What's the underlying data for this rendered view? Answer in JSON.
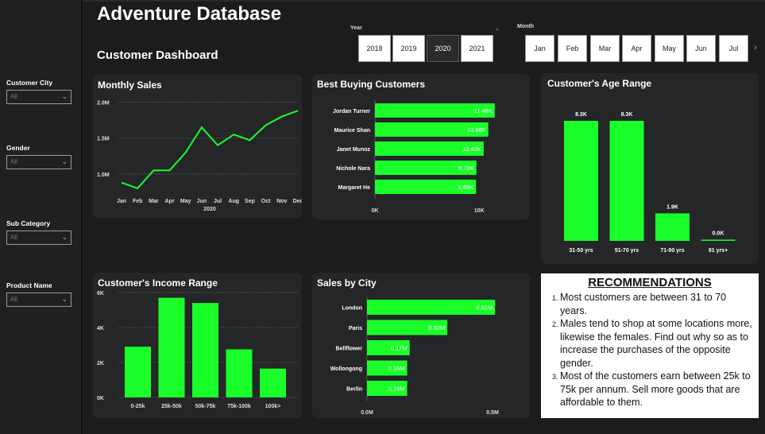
{
  "app": {
    "title": "Adventure Database",
    "subtitle": "Customer Dashboard"
  },
  "filters": [
    {
      "label": "Customer City",
      "value": "All"
    },
    {
      "label": "Gender",
      "value": "All"
    },
    {
      "label": "Sub Category",
      "value": "All"
    },
    {
      "label": "Product Name",
      "value": "All"
    }
  ],
  "year_slicer": {
    "label": "Year",
    "options": [
      "2018",
      "2019",
      "2020",
      "2021"
    ],
    "selected": "2020"
  },
  "month_slicer": {
    "label": "Month",
    "options": [
      "Jan",
      "Feb",
      "Mar",
      "Apr",
      "May",
      "Jun",
      "Jul"
    ]
  },
  "colors": {
    "accent": "#1aff2a",
    "card_bg": "#252628",
    "page_bg": "#1b1c1e"
  },
  "chart_data": [
    {
      "id": "monthly-sales",
      "type": "line",
      "title": "Monthly Sales",
      "categories": [
        "Jan",
        "Feb",
        "Mar",
        "Apr",
        "May",
        "Jun",
        "Jul",
        "Aug",
        "Sep",
        "Oct",
        "Nov",
        "Dec"
      ],
      "values": [
        0.88,
        0.8,
        1.05,
        1.05,
        1.3,
        1.65,
        1.4,
        1.55,
        1.47,
        1.68,
        1.8,
        1.88
      ],
      "xlabel": "2020",
      "ylim": [
        0.7,
        2.05
      ],
      "yticks": [
        1.0,
        1.5,
        2.0
      ],
      "ytick_labels": [
        "1.0M",
        "1.5M",
        "2.0M"
      ],
      "grid": true
    },
    {
      "id": "best-buying-customers",
      "type": "bar",
      "orientation": "horizontal",
      "title": "Best Buying Customers",
      "categories": [
        "Jordan Turner",
        "Maurice Shan",
        "Janet Munoz",
        "Nichole Nara",
        "Margaret He"
      ],
      "values": [
        11.48,
        10.86,
        10.42,
        9.72,
        9.69
      ],
      "data_labels": [
        "11.48K",
        "10.86K",
        "10.42K",
        "9.72K",
        "9.69K"
      ],
      "xlim": [
        0,
        15
      ],
      "xticks": [
        0,
        10
      ],
      "xtick_labels": [
        "0K",
        "10K"
      ]
    },
    {
      "id": "age-range",
      "type": "bar",
      "title": "Customer's Age Range",
      "categories": [
        "31-50 yrs",
        "51-70 yrs",
        "71-90 yrs",
        "91 yrs+"
      ],
      "values": [
        8.3,
        8.3,
        1.9,
        0.0
      ],
      "data_labels": [
        "8.3K",
        "8.3K",
        "1.9K",
        "0.0K"
      ],
      "ylim": [
        0,
        8.3
      ]
    },
    {
      "id": "income-range",
      "type": "bar",
      "title": "Customer's Income Range",
      "categories": [
        "0-25k",
        "25k-50k",
        "50k-75k",
        "75k-100k",
        "100k>"
      ],
      "values": [
        2.9,
        5.7,
        5.4,
        2.75,
        1.65
      ],
      "ylim": [
        0,
        6
      ],
      "yticks": [
        0,
        2,
        4,
        6
      ],
      "ytick_labels": [
        "0K",
        "2K",
        "4K",
        "6K"
      ],
      "grid": true
    },
    {
      "id": "sales-by-city",
      "type": "bar",
      "orientation": "horizontal",
      "title": "Sales by City",
      "categories": [
        "London",
        "Paris",
        "Bellflower",
        "Wollongong",
        "Berlin"
      ],
      "values": [
        0.51,
        0.32,
        0.17,
        0.16,
        0.16
      ],
      "data_labels": [
        "0.51M",
        "0.32M",
        "0.17M",
        "0.16M",
        "0.16M"
      ],
      "xlim": [
        0,
        0.5
      ],
      "xticks": [
        0,
        0.5
      ],
      "xtick_labels": [
        "0.0M",
        "0.5M"
      ]
    }
  ],
  "recommendations": {
    "title": "RECOMMENDATIONS",
    "items": [
      "Most customers are between 31 to 70 years.",
      "Males tend to shop at some locations more, likewise the females. Find out why so as to increase the purchases of the opposite gender.",
      "Most of the customers earn between 25k to 75k per annum. Sell more goods that are affordable to them."
    ]
  }
}
